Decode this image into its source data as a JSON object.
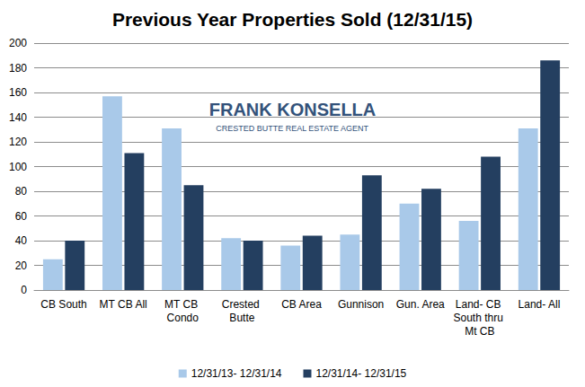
{
  "chart_data": {
    "type": "bar",
    "title": "Previous Year Properties Sold (12/31/15)",
    "annotations": [
      "FRANK KONSELLA",
      "CRESTED BUTTE REAL ESTATE AGENT"
    ],
    "categories": [
      "CB South",
      "MT CB All",
      "MT CB Condo",
      "Crested Butte",
      "CB Area",
      "Gunnison",
      "Gun. Area",
      "Land- CB South thru Mt CB",
      "Land- All"
    ],
    "series": [
      {
        "name": "12/31/13- 12/31/14",
        "color": "#a9c9e9",
        "values": [
          25,
          157,
          131,
          42,
          36,
          45,
          70,
          56,
          131
        ]
      },
      {
        "name": "12/31/14- 12/31/15",
        "color": "#243f60",
        "values": [
          40,
          111,
          85,
          40,
          44,
          93,
          82,
          108,
          186
        ]
      }
    ],
    "ylim": [
      0,
      200
    ],
    "yticks": [
      0,
      20,
      40,
      60,
      80,
      100,
      120,
      140,
      160,
      180,
      200
    ],
    "grid": true,
    "legend": "bottom"
  }
}
